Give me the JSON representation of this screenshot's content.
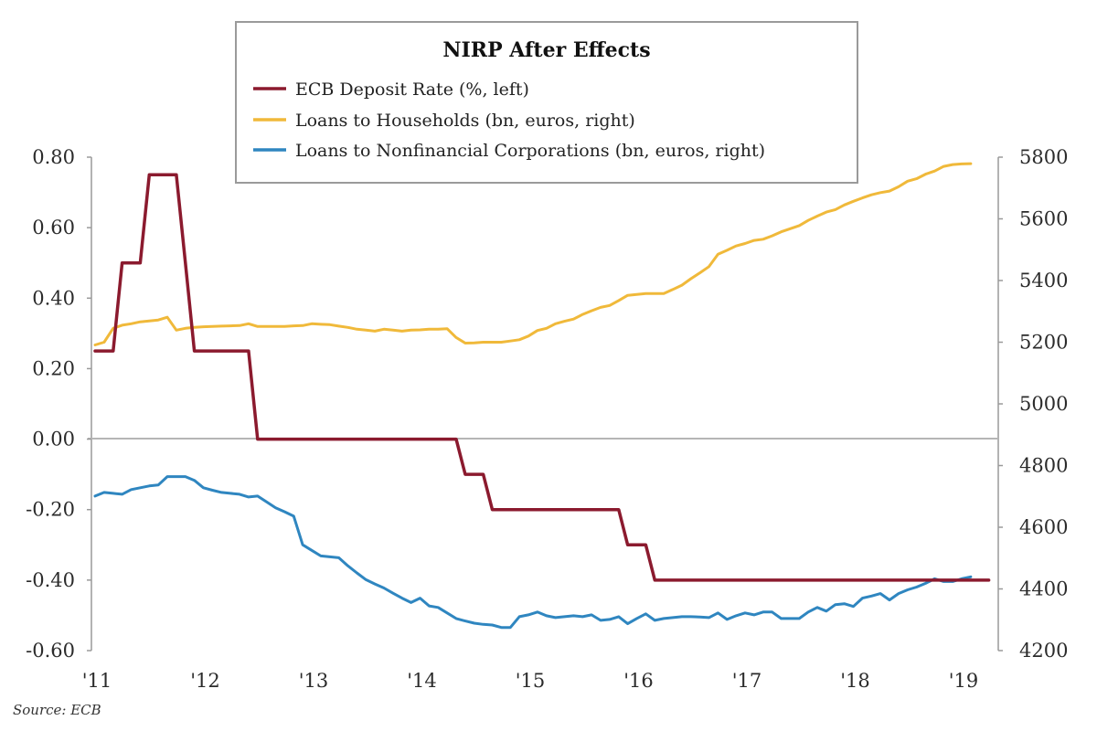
{
  "chart_data": {
    "type": "line",
    "title": "NIRP After Effects",
    "source": "Source: ECB",
    "x_start": "2011-01",
    "x_frequency": "monthly",
    "x_tick_labels": [
      "'11",
      "'12",
      "'13",
      "'14",
      "'15",
      "'16",
      "'17",
      "'18",
      "'19"
    ],
    "y_left": {
      "label": "",
      "range": [
        -0.6,
        0.8
      ],
      "ticks": [
        "0.80",
        "0.60",
        "0.40",
        "0.20",
        "0.00",
        "-0.20",
        "-0.40",
        "-0.60"
      ],
      "tick_values": [
        0.8,
        0.6,
        0.4,
        0.2,
        0.0,
        -0.2,
        -0.4,
        -0.6
      ]
    },
    "y_right": {
      "label": "",
      "range": [
        4200,
        5800
      ],
      "ticks": [
        "5800",
        "5600",
        "5400",
        "5200",
        "5000",
        "4800",
        "4600",
        "4400",
        "4200"
      ],
      "tick_values": [
        5800,
        5600,
        5400,
        5200,
        5000,
        4800,
        4600,
        4400,
        4200
      ]
    },
    "grid": false,
    "zero_line": true,
    "legend_position": "top-center",
    "series": [
      {
        "name": "ECB Deposit Rate (%, left)",
        "axis": "left",
        "color": "#8b1a2e",
        "values": [
          0.25,
          0.25,
          0.25,
          0.5,
          0.5,
          0.5,
          0.75,
          0.75,
          0.75,
          0.75,
          0.5,
          0.25,
          0.25,
          0.25,
          0.25,
          0.25,
          0.25,
          0.25,
          0.0,
          0.0,
          0.0,
          0.0,
          0.0,
          0.0,
          0.0,
          0.0,
          0.0,
          0.0,
          0.0,
          0.0,
          0.0,
          0.0,
          0.0,
          0.0,
          0.0,
          0.0,
          0.0,
          0.0,
          0.0,
          0.0,
          0.0,
          -0.1,
          -0.1,
          -0.1,
          -0.2,
          -0.2,
          -0.2,
          -0.2,
          -0.2,
          -0.2,
          -0.2,
          -0.2,
          -0.2,
          -0.2,
          -0.2,
          -0.2,
          -0.2,
          -0.2,
          -0.2,
          -0.3,
          -0.3,
          -0.3,
          -0.4,
          -0.4,
          -0.4,
          -0.4,
          -0.4,
          -0.4,
          -0.4,
          -0.4,
          -0.4,
          -0.4,
          -0.4,
          -0.4,
          -0.4,
          -0.4,
          -0.4,
          -0.4,
          -0.4,
          -0.4,
          -0.4,
          -0.4,
          -0.4,
          -0.4,
          -0.4,
          -0.4,
          -0.4,
          -0.4,
          -0.4,
          -0.4,
          -0.4,
          -0.4,
          -0.4,
          -0.4,
          -0.4,
          -0.4,
          -0.4,
          -0.4,
          -0.4,
          -0.4
        ]
      },
      {
        "name": "Loans to Households (bn, euros, right)",
        "axis": "right",
        "color": "#f0b93a",
        "values": [
          5191,
          5200,
          5245,
          5255,
          5260,
          5266,
          5269,
          5272,
          5281,
          5239,
          5245,
          5248,
          5250,
          5251,
          5252,
          5253,
          5254,
          5260,
          5251,
          5251,
          5251,
          5251,
          5253,
          5254,
          5260,
          5258,
          5257,
          5252,
          5248,
          5242,
          5239,
          5236,
          5242,
          5239,
          5236,
          5239,
          5240,
          5242,
          5242,
          5244,
          5215,
          5197,
          5198,
          5200,
          5200,
          5200,
          5204,
          5208,
          5220,
          5238,
          5245,
          5260,
          5268,
          5275,
          5290,
          5302,
          5313,
          5319,
          5335,
          5352,
          5355,
          5358,
          5358,
          5358,
          5371,
          5385,
          5406,
          5425,
          5445,
          5485,
          5498,
          5512,
          5520,
          5530,
          5534,
          5545,
          5558,
          5568,
          5578,
          5595,
          5609,
          5622,
          5630,
          5645,
          5657,
          5668,
          5678,
          5685,
          5690,
          5704,
          5722,
          5730,
          5745,
          5755,
          5770,
          5776,
          5778,
          5779
        ]
      },
      {
        "name": "Loans to Nonfinancial Corporations (bn, euros, right)",
        "axis": "right",
        "color": "#2f86c0",
        "values": [
          4701,
          4713,
          4710,
          4707,
          4722,
          4728,
          4734,
          4737,
          4764,
          4764,
          4764,
          4752,
          4728,
          4720,
          4713,
          4710,
          4707,
          4698,
          4701,
          4682,
          4663,
          4650,
          4636,
          4543,
          4525,
          4507,
          4504,
          4501,
          4475,
          4452,
          4430,
          4416,
          4403,
          4386,
          4370,
          4356,
          4370,
          4345,
          4340,
          4322,
          4304,
          4296,
          4289,
          4285,
          4283,
          4275,
          4275,
          4310,
          4316,
          4325,
          4313,
          4307,
          4310,
          4313,
          4310,
          4316,
          4298,
          4301,
          4310,
          4287,
          4304,
          4319,
          4298,
          4304,
          4307,
          4310,
          4310,
          4309,
          4307,
          4322,
          4301,
          4313,
          4322,
          4316,
          4325,
          4325,
          4304,
          4304,
          4304,
          4325,
          4340,
          4328,
          4349,
          4352,
          4343,
          4370,
          4377,
          4385,
          4364,
          4385,
          4397,
          4406,
          4418,
          4433,
          4424,
          4424,
          4433,
          4439
        ]
      }
    ]
  }
}
